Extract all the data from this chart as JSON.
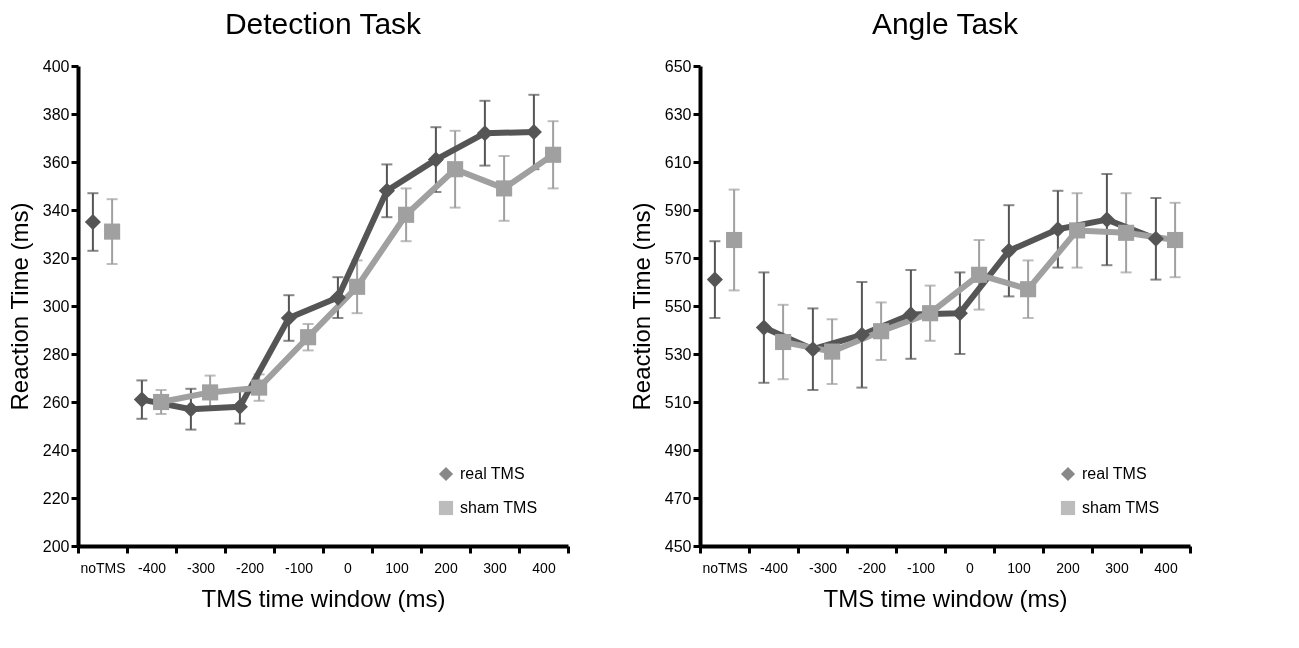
{
  "chart_data": [
    {
      "type": "line",
      "title": "Detection Task",
      "xlabel": "TMS time window (ms)",
      "ylabel": "Reaction Time (ms)",
      "categories": [
        "noTMS",
        "-400",
        "-300",
        "-200",
        "-100",
        "0",
        "100",
        "200",
        "300",
        "400"
      ],
      "ylim": [
        200,
        400
      ],
      "yticks": [
        200,
        220,
        240,
        260,
        280,
        300,
        320,
        340,
        360,
        380,
        400
      ],
      "grid": false,
      "legend": "bottom right",
      "series": [
        {
          "name": "real TMS",
          "type": "line",
          "marker": "diamond",
          "color": "#555555",
          "values": [
            null,
            261,
            257,
            258,
            295,
            303.5,
            348,
            361,
            372,
            372.5
          ],
          "errors": [
            null,
            8,
            8.5,
            7,
            9.5,
            8.5,
            11,
            13.5,
            13.5,
            15.5
          ]
        },
        {
          "name": "sham TMS",
          "type": "line",
          "marker": "square",
          "color": "#a0a0a0",
          "values": [
            null,
            260,
            264,
            266,
            287,
            308,
            338,
            357,
            349,
            363
          ],
          "errors": [
            null,
            5,
            7,
            5.5,
            5.5,
            11,
            11,
            16,
            13.5,
            14
          ]
        },
        {
          "type": "scatter",
          "marker": "diamond",
          "color": "#555555",
          "values": [
            335,
            null,
            null,
            null,
            null,
            null,
            null,
            null,
            null,
            null
          ],
          "errors": [
            12,
            null,
            null,
            null,
            null,
            null,
            null,
            null,
            null,
            null
          ]
        },
        {
          "type": "scatter",
          "marker": "square",
          "color": "#a0a0a0",
          "values": [
            331,
            null,
            null,
            null,
            null,
            null,
            null,
            null,
            null,
            null
          ],
          "errors": [
            13.5,
            null,
            null,
            null,
            null,
            null,
            null,
            null,
            null,
            null
          ]
        }
      ]
    },
    {
      "type": "line",
      "title": "Angle Task",
      "xlabel": "TMS time window (ms)",
      "ylabel": "Reaction Time (ms)",
      "categories": [
        "noTMS",
        "-400",
        "-300",
        "-200",
        "-100",
        "0",
        "100",
        "200",
        "300",
        "400"
      ],
      "ylim": [
        450,
        650
      ],
      "yticks": [
        450,
        470,
        490,
        510,
        530,
        550,
        570,
        590,
        610,
        630,
        650
      ],
      "grid": false,
      "legend": "bottom right",
      "series": [
        {
          "name": "real TMS",
          "type": "line",
          "marker": "diamond",
          "color": "#555555",
          "values": [
            null,
            541,
            532,
            538,
            546.5,
            547,
            573,
            582,
            586,
            578
          ],
          "errors": [
            null,
            23,
            17,
            22,
            18.5,
            17,
            19,
            16,
            19,
            17
          ]
        },
        {
          "name": "sham TMS",
          "type": "line",
          "marker": "square",
          "color": "#a0a0a0",
          "values": [
            null,
            535,
            531,
            539.5,
            547,
            563,
            557,
            581.5,
            580.5,
            577.5
          ],
          "errors": [
            null,
            15.5,
            13.5,
            12,
            11.5,
            14.5,
            12,
            15.5,
            16.5,
            15.5
          ]
        },
        {
          "type": "scatter",
          "marker": "diamond",
          "color": "#555555",
          "values": [
            561,
            null,
            null,
            null,
            null,
            null,
            null,
            null,
            null,
            null
          ],
          "errors": [
            16,
            null,
            null,
            null,
            null,
            null,
            null,
            null,
            null,
            null
          ]
        },
        {
          "type": "scatter",
          "marker": "square",
          "color": "#a0a0a0",
          "values": [
            577.5,
            null,
            null,
            null,
            null,
            null,
            null,
            null,
            null,
            null
          ],
          "errors": [
            21,
            null,
            null,
            null,
            null,
            null,
            null,
            null,
            null,
            null
          ]
        }
      ]
    }
  ]
}
